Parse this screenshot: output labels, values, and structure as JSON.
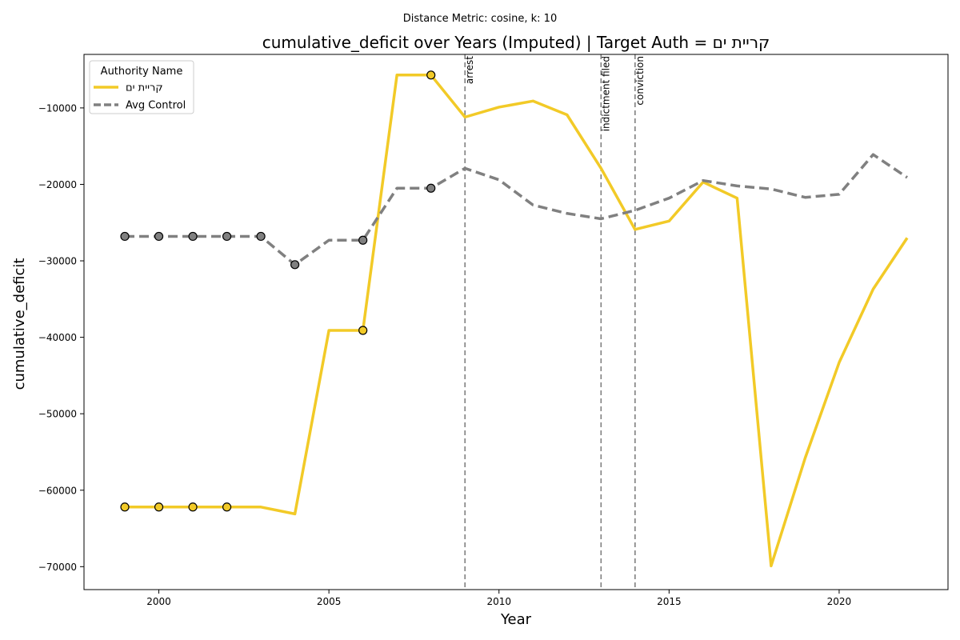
{
  "chart_data": {
    "type": "line",
    "suptitle": "Distance Metric: cosine, k: 10",
    "title": "cumulative_deficit over Years (Imputed) | Target Auth = קריית ים",
    "xlabel": "Year",
    "ylabel": "cumulative_deficit",
    "xlim": [
      1997.8,
      2023.2
    ],
    "ylim": [
      -73000,
      -3000
    ],
    "x_ticks": [
      2000,
      2005,
      2010,
      2015,
      2020
    ],
    "y_ticks": [
      -70000,
      -60000,
      -50000,
      -40000,
      -30000,
      -20000,
      -10000
    ],
    "y_tick_labels": [
      "−70000",
      "−60000",
      "−50000",
      "−40000",
      "−30000",
      "−20000",
      "−10000"
    ],
    "grid": false,
    "legend": {
      "title": "Authority Name",
      "placement": "top-left"
    },
    "x": [
      1999,
      2000,
      2001,
      2002,
      2003,
      2004,
      2005,
      2006,
      2007,
      2008,
      2009,
      2010,
      2011,
      2012,
      2013,
      2014,
      2015,
      2016,
      2017,
      2018,
      2019,
      2020,
      2021,
      2022
    ],
    "series": [
      {
        "name": "קריית ים",
        "color": "#f2ca27",
        "dash": "solid",
        "values": [
          -62200,
          -62200,
          -62200,
          -62200,
          -62200,
          -63100,
          -39100,
          -39100,
          -5700,
          -5700,
          -11200,
          -9900,
          -9100,
          -10900,
          -17900,
          -25900,
          -24800,
          -19700,
          -21800,
          -69900,
          -55800,
          -43300,
          -33700,
          -27000
        ],
        "imputed_years": [
          1999,
          2000,
          2001,
          2002,
          2006,
          2008
        ]
      },
      {
        "name": "Avg Control",
        "color": "#808080",
        "dash": "dashed",
        "values": [
          -26800,
          -26800,
          -26800,
          -26800,
          -26800,
          -30500,
          -27300,
          -27300,
          -20500,
          -20500,
          -17900,
          -19400,
          -22700,
          -23800,
          -24500,
          -23400,
          -21800,
          -19500,
          -20200,
          -20600,
          -21700,
          -21300,
          -16100,
          -19100
        ],
        "imputed_years": [
          1999,
          2000,
          2001,
          2002,
          2003,
          2004,
          2006,
          2008
        ]
      }
    ],
    "events": [
      {
        "year": 2009,
        "label": "arrest"
      },
      {
        "year": 2013,
        "label": "indictment filed"
      },
      {
        "year": 2014,
        "label": "conviction"
      }
    ]
  }
}
